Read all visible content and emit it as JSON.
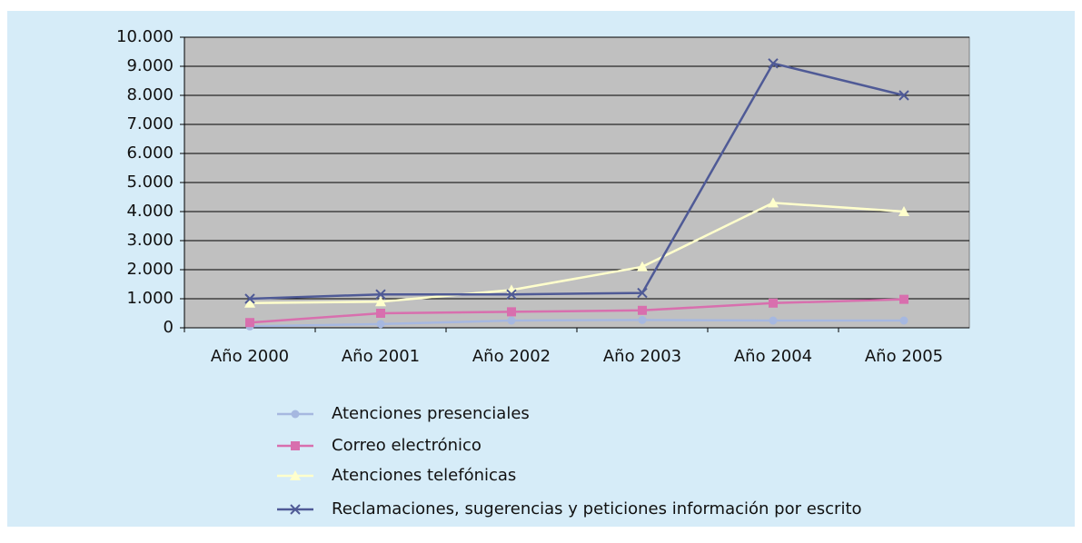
{
  "chart_data": {
    "type": "line",
    "categories": [
      "Año 2000",
      "Año 2001",
      "Año 2002",
      "Año 2003",
      "Año 2004",
      "Año 2005"
    ],
    "series": [
      {
        "name": "Atenciones presenciales",
        "color": "#a6b8e0",
        "marker": "circle",
        "values": [
          50,
          130,
          250,
          270,
          250,
          250
        ]
      },
      {
        "name": "Correo electrónico",
        "color": "#d86fae",
        "marker": "square",
        "values": [
          180,
          500,
          550,
          600,
          850,
          980
        ]
      },
      {
        "name": "Atenciones telefónicas",
        "color": "#ffffcc",
        "marker": "triangle",
        "values": [
          850,
          900,
          1300,
          2100,
          4300,
          4000
        ]
      },
      {
        "name": "Reclamaciones, sugerencias y peticiones información por escrito",
        "color": "#4f5a96",
        "marker": "x",
        "values": [
          1000,
          1150,
          1150,
          1200,
          9100,
          8000
        ]
      }
    ],
    "ylim": [
      0,
      10000
    ],
    "yticks": [
      0,
      {
        "value": 1000,
        "label": "1.000"
      },
      {
        "value": 2000,
        "label": "2.000"
      },
      {
        "value": 3000,
        "label": "3.000"
      },
      {
        "value": 4000,
        "label": "4.000"
      },
      {
        "value": 5000,
        "label": "5.000"
      },
      {
        "value": 6000,
        "label": "6.000"
      },
      {
        "value": 7000,
        "label": "7.000"
      },
      {
        "value": 8000,
        "label": "8.000"
      },
      {
        "value": 9000,
        "label": "9.000"
      },
      {
        "value": 10000,
        "label": "10.000"
      }
    ],
    "grid": true,
    "legend": "bottom"
  }
}
